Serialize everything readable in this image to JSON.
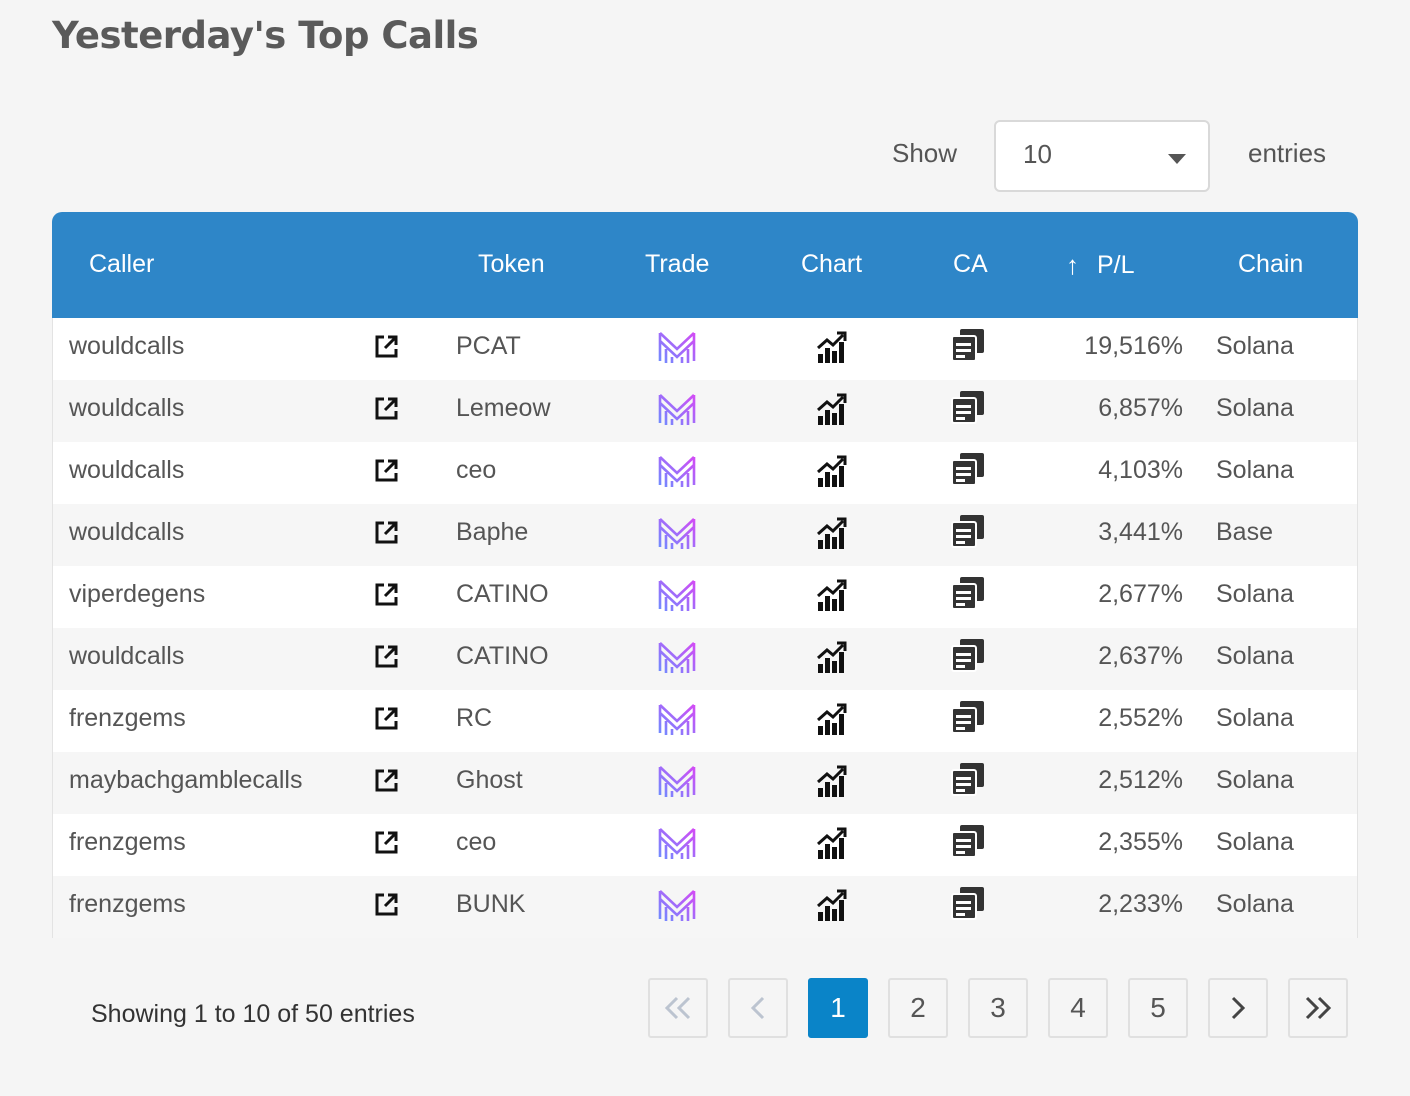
{
  "page": {
    "title": "Yesterday's Top Calls"
  },
  "length": {
    "show_label": "Show",
    "value": "10",
    "entries_label": "entries"
  },
  "table": {
    "headers": {
      "caller": "Caller",
      "token": "Token",
      "trade": "Trade",
      "chart": "Chart",
      "ca": "CA",
      "pl": "P/L",
      "chain": "Chain"
    },
    "sort_icon": "arrow-up-icon",
    "rows": [
      {
        "caller": "wouldcalls",
        "token": "PCAT",
        "pl": "19,516%",
        "chain": "Solana"
      },
      {
        "caller": "wouldcalls",
        "token": "Lemeow",
        "pl": "6,857%",
        "chain": "Solana"
      },
      {
        "caller": "wouldcalls",
        "token": "ceo",
        "pl": "4,103%",
        "chain": "Solana"
      },
      {
        "caller": "wouldcalls",
        "token": "Baphe",
        "pl": "3,441%",
        "chain": "Base"
      },
      {
        "caller": "viperdegens",
        "token": "CATINO",
        "pl": "2,677%",
        "chain": "Solana"
      },
      {
        "caller": "wouldcalls",
        "token": "CATINO",
        "pl": "2,637%",
        "chain": "Solana"
      },
      {
        "caller": "frenzgems",
        "token": "RC",
        "pl": "2,552%",
        "chain": "Solana"
      },
      {
        "caller": "maybachgamblecalls",
        "token": "Ghost",
        "pl": "2,512%",
        "chain": "Solana"
      },
      {
        "caller": "frenzgems",
        "token": "ceo",
        "pl": "2,355%",
        "chain": "Solana"
      },
      {
        "caller": "frenzgems",
        "token": "BUNK",
        "pl": "2,233%",
        "chain": "Solana"
      }
    ]
  },
  "pagination": {
    "info": "Showing 1 to 10 of 50 entries",
    "first": "«",
    "prev": "‹",
    "pages": [
      "1",
      "2",
      "3",
      "4",
      "5"
    ],
    "current": "1",
    "next": "›",
    "last": "»"
  },
  "colors": {
    "header_bg": "#2e86c8",
    "active_page": "#0a84c8",
    "trade_icon_gradient": [
      "#6f8cff",
      "#d24cf5"
    ]
  }
}
